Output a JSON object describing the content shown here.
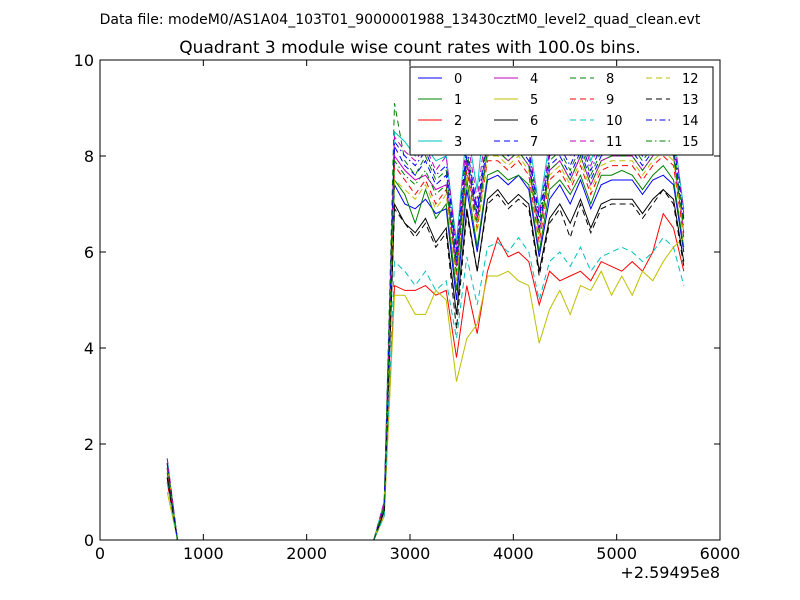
{
  "suptitle": "Data file: modeM0/AS1A04_103T01_9000001988_13430cztM0_level2_quad_clean.evt",
  "chart_data": {
    "type": "line",
    "title": "Quadrant 3 module wise count rates with 100.0s bins.",
    "xlabel": "",
    "ylabel": "",
    "x_offset_label": "+2.59495e8",
    "xlim": [
      0,
      6000
    ],
    "ylim": [
      0,
      10
    ],
    "xticks": [
      "0",
      "1000",
      "2000",
      "3000",
      "4000",
      "5000",
      "6000"
    ],
    "yticks": [
      "0",
      "2",
      "4",
      "6",
      "8",
      "10"
    ],
    "grid": false,
    "legend": {
      "placement": "top-right",
      "columns": 4
    },
    "x": [
      650,
      750,
      850,
      950,
      1050,
      1150,
      1250,
      1350,
      1450,
      1550,
      1650,
      1750,
      1850,
      1950,
      2050,
      2150,
      2250,
      2350,
      2450,
      2550,
      2650,
      2750,
      2850,
      2950,
      3050,
      3150,
      3250,
      3350,
      3450,
      3550,
      3650,
      3750,
      3850,
      3950,
      4050,
      4150,
      4250,
      4350,
      4450,
      4550,
      4650,
      4750,
      4850,
      4950,
      5050,
      5150,
      5250,
      5350,
      5450,
      5550,
      5650
    ],
    "series": [
      {
        "name": "0",
        "color": "#0000ff",
        "dash": "solid",
        "values": [
          1.6,
          0,
          0,
          0,
          0,
          0,
          0,
          0,
          0,
          0,
          0,
          0,
          0,
          0,
          0,
          0,
          0,
          0,
          0,
          0,
          0,
          0.7,
          7.4,
          7.0,
          6.9,
          7.1,
          6.8,
          6.9,
          5.0,
          7.3,
          6.0,
          7.5,
          7.6,
          7.4,
          7.6,
          7.3,
          5.9,
          7.1,
          7.4,
          7.0,
          7.5,
          6.9,
          7.4,
          7.5,
          7.5,
          7.5,
          7.2,
          7.5,
          7.6,
          7.4,
          6.0
        ]
      },
      {
        "name": "1",
        "color": "#008000",
        "dash": "solid",
        "values": [
          1.4,
          0,
          0,
          0,
          0,
          0,
          0,
          0,
          0,
          0,
          0,
          0,
          0,
          0,
          0,
          0,
          0,
          0,
          0,
          0,
          0,
          0.6,
          7.5,
          7.2,
          6.6,
          7.3,
          6.7,
          7.0,
          5.2,
          7.5,
          6.1,
          7.6,
          7.7,
          7.5,
          7.6,
          7.4,
          6.0,
          7.3,
          7.5,
          7.2,
          7.6,
          7.0,
          7.6,
          7.6,
          7.7,
          7.6,
          7.3,
          7.6,
          7.8,
          7.5,
          6.1
        ]
      },
      {
        "name": "2",
        "color": "#ff0000",
        "dash": "solid",
        "values": [
          1.2,
          0,
          0,
          0,
          0,
          0,
          0,
          0,
          0,
          0,
          0,
          0,
          0,
          0,
          0,
          0,
          0,
          0,
          0,
          0,
          0,
          0.5,
          5.3,
          5.2,
          5.2,
          5.3,
          5.1,
          5.2,
          3.8,
          5.3,
          4.3,
          5.6,
          6.3,
          5.9,
          6.0,
          5.8,
          4.9,
          5.6,
          5.4,
          5.5,
          5.6,
          5.4,
          5.8,
          5.7,
          5.6,
          5.8,
          5.6,
          6.0,
          6.8,
          6.5,
          5.6
        ]
      },
      {
        "name": "3",
        "color": "#00bfbf",
        "dash": "solid",
        "values": [
          1.7,
          0,
          0,
          0,
          0,
          0,
          0,
          0,
          0,
          0,
          0,
          0,
          0,
          0,
          0,
          0,
          0,
          0,
          0,
          0,
          0,
          0.8,
          8.5,
          8.3,
          8.0,
          8.2,
          7.9,
          8.0,
          6.2,
          8.6,
          7.3,
          9.5,
          8.8,
          8.5,
          8.6,
          8.4,
          6.9,
          8.3,
          8.6,
          8.1,
          8.6,
          7.9,
          8.5,
          8.6,
          8.6,
          8.5,
          8.3,
          8.6,
          8.9,
          8.5,
          6.9
        ]
      },
      {
        "name": "4",
        "color": "#bf00bf",
        "dash": "solid",
        "values": [
          1.5,
          0,
          0,
          0,
          0,
          0,
          0,
          0,
          0,
          0,
          0,
          0,
          0,
          0,
          0,
          0,
          0,
          0,
          0,
          0,
          0,
          0.7,
          8.0,
          7.7,
          7.5,
          7.6,
          7.3,
          7.4,
          5.7,
          7.9,
          6.7,
          8.1,
          8.1,
          7.9,
          8.1,
          7.8,
          6.4,
          7.7,
          7.9,
          7.5,
          8.0,
          7.4,
          7.9,
          8.0,
          8.0,
          8.0,
          7.7,
          8.0,
          8.3,
          8.0,
          6.4
        ]
      },
      {
        "name": "5",
        "color": "#bfbf00",
        "dash": "solid",
        "values": [
          1.0,
          0,
          0,
          0,
          0,
          0,
          0,
          0,
          0,
          0,
          0,
          0,
          0,
          0,
          0,
          0,
          0,
          0,
          0,
          0,
          0,
          0.5,
          5.1,
          5.1,
          4.7,
          4.7,
          5.2,
          5.0,
          3.3,
          4.2,
          4.5,
          5.5,
          5.5,
          5.6,
          5.4,
          5.3,
          4.1,
          4.8,
          5.2,
          4.7,
          5.3,
          5.2,
          5.6,
          5.1,
          5.5,
          5.1,
          5.6,
          5.4,
          5.8,
          6.1,
          6.3
        ]
      },
      {
        "name": "6",
        "color": "#000000",
        "dash": "solid",
        "values": [
          1.3,
          0,
          0,
          0,
          0,
          0,
          0,
          0,
          0,
          0,
          0,
          0,
          0,
          0,
          0,
          0,
          0,
          0,
          0,
          0,
          0,
          0.6,
          7.0,
          6.6,
          6.4,
          6.7,
          6.2,
          6.5,
          4.7,
          6.9,
          5.6,
          7.1,
          7.3,
          7.0,
          7.2,
          7.0,
          5.6,
          6.7,
          7.0,
          6.6,
          7.1,
          6.5,
          7.0,
          7.1,
          7.1,
          7.1,
          6.8,
          7.1,
          7.3,
          7.1,
          5.8
        ]
      },
      {
        "name": "7",
        "color": "#0000ff",
        "dash": "dashed",
        "values": [
          1.6,
          0,
          0,
          0,
          0,
          0,
          0,
          0,
          0,
          0,
          0,
          0,
          0,
          0,
          0,
          0,
          0,
          0,
          0,
          0,
          0,
          0.7,
          8.2,
          7.8,
          7.6,
          7.9,
          7.4,
          7.6,
          5.8,
          8.0,
          6.8,
          8.3,
          8.2,
          8.0,
          8.2,
          7.9,
          6.5,
          7.8,
          8.0,
          7.6,
          8.1,
          7.5,
          8.0,
          8.1,
          8.1,
          8.1,
          7.8,
          8.1,
          8.4,
          8.1,
          6.6
        ]
      },
      {
        "name": "8",
        "color": "#008000",
        "dash": "dashed",
        "values": [
          1.6,
          0,
          0,
          0,
          0,
          0,
          0,
          0,
          0,
          0,
          0,
          0,
          0,
          0,
          0,
          0,
          0,
          0,
          0,
          0,
          0,
          0.7,
          9.1,
          7.9,
          7.6,
          8.0,
          7.5,
          7.7,
          5.9,
          8.1,
          6.9,
          8.3,
          8.3,
          8.1,
          8.3,
          8.0,
          6.6,
          7.9,
          8.1,
          7.7,
          8.2,
          7.6,
          8.1,
          8.2,
          8.2,
          8.2,
          7.9,
          8.2,
          8.4,
          8.2,
          6.6
        ]
      },
      {
        "name": "9",
        "color": "#ff0000",
        "dash": "dashed",
        "values": [
          1.5,
          0,
          0,
          0,
          0,
          0,
          0,
          0,
          0,
          0,
          0,
          0,
          0,
          0,
          0,
          0,
          0,
          0,
          0,
          0,
          0,
          0.7,
          7.8,
          7.5,
          7.2,
          7.5,
          7.0,
          7.3,
          5.5,
          7.7,
          6.5,
          7.9,
          7.9,
          7.7,
          7.9,
          7.6,
          6.2,
          7.5,
          7.7,
          7.3,
          7.8,
          7.2,
          7.7,
          7.8,
          7.8,
          7.8,
          7.5,
          7.8,
          8.0,
          7.8,
          6.3
        ]
      },
      {
        "name": "10",
        "color": "#00bfbf",
        "dash": "dashed",
        "values": [
          1.2,
          0,
          0,
          0,
          0,
          0,
          0,
          0,
          0,
          0,
          0,
          0,
          0,
          0,
          0,
          0,
          0,
          0,
          0,
          0,
          0,
          0.5,
          5.8,
          5.6,
          5.3,
          5.6,
          5.2,
          5.4,
          4.2,
          5.9,
          4.9,
          6.1,
          6.2,
          6.0,
          6.3,
          6.0,
          5.0,
          5.8,
          6.0,
          5.7,
          6.1,
          5.6,
          5.9,
          6.0,
          6.1,
          6.0,
          5.8,
          6.0,
          6.3,
          6.1,
          5.3
        ]
      },
      {
        "name": "11",
        "color": "#bf00bf",
        "dash": "dashed",
        "values": [
          1.7,
          0,
          0,
          0,
          0,
          0,
          0,
          0,
          0,
          0,
          0,
          0,
          0,
          0,
          0,
          0,
          0,
          0,
          0,
          0,
          0,
          0.8,
          8.4,
          8.1,
          7.9,
          8.2,
          7.7,
          8.0,
          6.1,
          8.4,
          7.1,
          8.8,
          8.6,
          8.4,
          8.6,
          8.2,
          6.8,
          8.1,
          8.4,
          8.0,
          8.5,
          7.8,
          8.4,
          8.5,
          8.5,
          8.5,
          8.2,
          8.5,
          8.8,
          8.5,
          6.8
        ]
      },
      {
        "name": "12",
        "color": "#bfbf00",
        "dash": "dashed",
        "values": [
          1.6,
          0,
          0,
          0,
          0,
          0,
          0,
          0,
          0,
          0,
          0,
          0,
          0,
          0,
          0,
          0,
          0,
          0,
          0,
          0,
          0,
          0.7,
          7.5,
          7.3,
          7.1,
          7.4,
          6.9,
          7.2,
          5.4,
          7.6,
          6.4,
          8.0,
          8.0,
          7.8,
          8.0,
          7.7,
          6.3,
          7.6,
          7.8,
          7.4,
          7.9,
          7.3,
          7.8,
          7.9,
          7.9,
          7.9,
          7.6,
          7.9,
          8.1,
          7.9,
          6.4
        ]
      },
      {
        "name": "13",
        "color": "#000000",
        "dash": "dashed",
        "values": [
          1.3,
          0,
          0,
          0,
          0,
          0,
          0,
          0,
          0,
          0,
          0,
          0,
          0,
          0,
          0,
          0,
          0,
          0,
          0,
          0,
          0,
          0.6,
          6.9,
          6.6,
          6.3,
          6.6,
          6.1,
          6.4,
          4.4,
          6.8,
          5.6,
          7.0,
          7.2,
          6.9,
          7.1,
          6.9,
          5.5,
          6.6,
          6.9,
          6.3,
          7.0,
          6.4,
          6.9,
          7.0,
          7.0,
          7.0,
          6.7,
          7.0,
          7.3,
          7.0,
          5.7
        ]
      },
      {
        "name": "14",
        "color": "#0000ff",
        "dash": "dashdot",
        "values": [
          1.6,
          0,
          0,
          0,
          0,
          0,
          0,
          0,
          0,
          0,
          0,
          0,
          0,
          0,
          0,
          0,
          0,
          0,
          0,
          0,
          0,
          0.7,
          8.3,
          8.0,
          7.8,
          8.1,
          7.6,
          7.8,
          6.0,
          8.2,
          6.9,
          8.5,
          8.4,
          8.2,
          8.4,
          8.1,
          6.7,
          8.0,
          8.2,
          7.8,
          8.3,
          7.7,
          8.2,
          8.3,
          8.3,
          8.3,
          8.0,
          8.3,
          8.6,
          8.3,
          6.7
        ]
      },
      {
        "name": "15",
        "color": "#008000",
        "dash": "dashdot",
        "values": [
          1.5,
          0,
          0,
          0,
          0,
          0,
          0,
          0,
          0,
          0,
          0,
          0,
          0,
          0,
          0,
          0,
          0,
          0,
          0,
          0,
          0,
          0.7,
          7.9,
          7.6,
          7.4,
          7.7,
          7.2,
          7.4,
          5.6,
          7.8,
          6.6,
          8.1,
          8.1,
          7.9,
          8.1,
          7.8,
          6.4,
          7.7,
          7.9,
          7.5,
          8.0,
          7.4,
          7.9,
          8.0,
          8.0,
          8.0,
          7.7,
          8.0,
          8.2,
          8.0,
          6.5
        ]
      }
    ]
  }
}
